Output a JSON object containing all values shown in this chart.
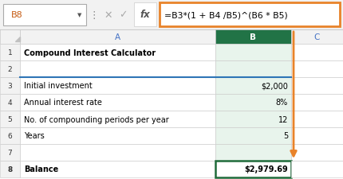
{
  "formula_bar_cell": "B8",
  "formula_bar_formula": "=B3*(1 + B4 /B5)^(B6 * B5)",
  "rows": [
    {
      "row": "1",
      "a": "Compound Interest Calculator",
      "b": "",
      "bold_a": true
    },
    {
      "row": "2",
      "a": "",
      "b": ""
    },
    {
      "row": "3",
      "a": "Initial investment",
      "b": "$2,000"
    },
    {
      "row": "4",
      "a": "Annual interest rate",
      "b": "8%"
    },
    {
      "row": "5",
      "a": "No. of compounding periods per year",
      "b": "12"
    },
    {
      "row": "6",
      "a": "Years",
      "b": "5"
    },
    {
      "row": "7",
      "a": "",
      "b": ""
    },
    {
      "row": "8",
      "a": "Balance",
      "b": "$2,979.69",
      "bold_a": true,
      "bold_b": true
    }
  ],
  "colors": {
    "bg": "#ffffff",
    "formula_box_border": "#E8832A",
    "header_bar_bg": "#f2f2f2",
    "grid_line": "#c8c8c8",
    "selected_col_bg": "#e8f4ec",
    "selected_col_header_bg": "#217346",
    "cell_text_blue": "#4472C4",
    "row_number_bg": "#f2f2f2",
    "arrow_color": "#E8832A",
    "b8_cell_border": "#1F6B3A",
    "blue_border": "#2E75B6",
    "top_bar_bg": "#f2f2f2"
  }
}
